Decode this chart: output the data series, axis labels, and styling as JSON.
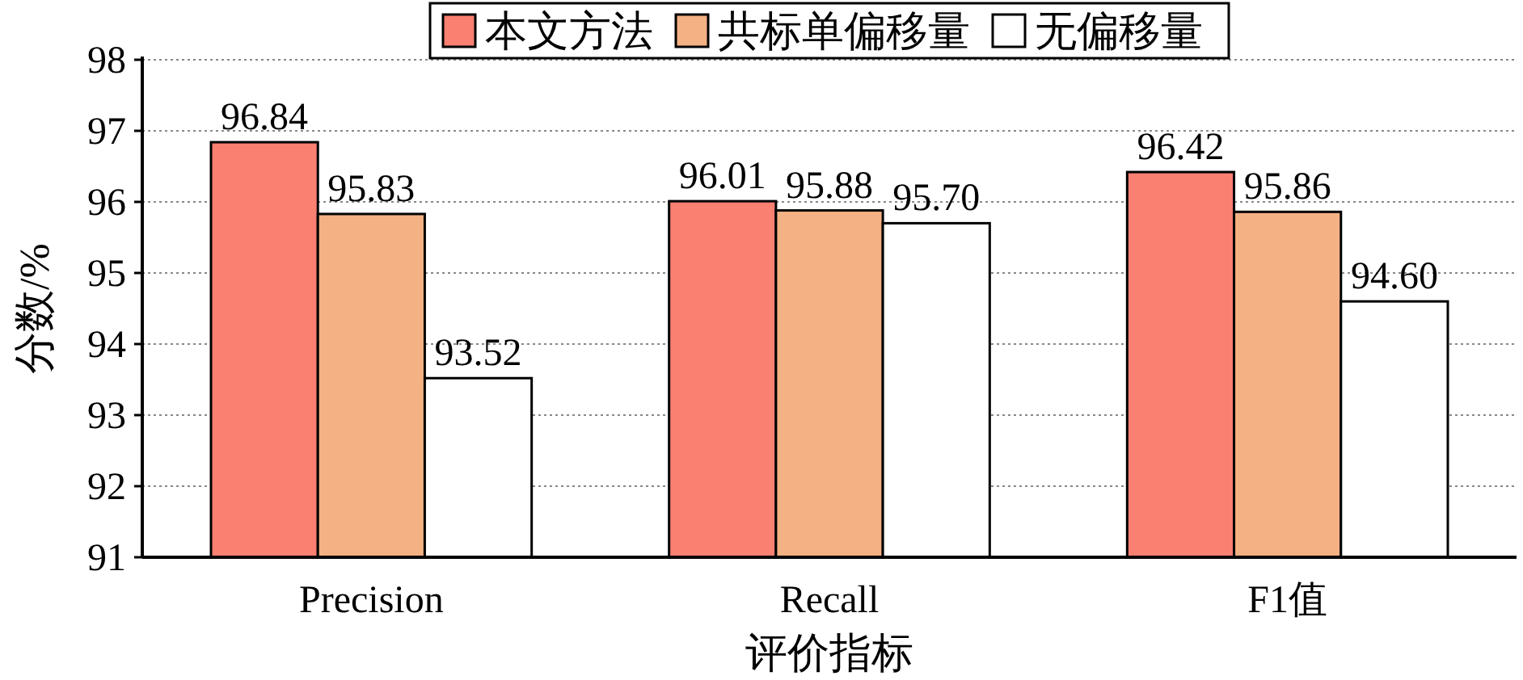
{
  "chart_data": {
    "type": "bar",
    "xlabel": "评价指标",
    "ylabel": "分数/%",
    "categories": [
      "Precision",
      "Recall",
      "F1值"
    ],
    "series": [
      {
        "name": "本文方法",
        "color": "#fa8072",
        "values": [
          96.84,
          96.01,
          96.42
        ],
        "value_labels": [
          "96.84",
          "96.01",
          "96.42"
        ]
      },
      {
        "name": "共标单偏移量",
        "color": "#f4b183",
        "values": [
          95.83,
          95.88,
          95.86
        ],
        "value_labels": [
          "95.83",
          "95.88",
          "95.86"
        ]
      },
      {
        "name": "无偏移量",
        "color": "#ffffff",
        "values": [
          93.52,
          95.7,
          94.6
        ],
        "value_labels": [
          "93.52",
          "95.70",
          "94.60"
        ]
      }
    ],
    "ylim": [
      91,
      98
    ],
    "yticks": [
      91,
      92,
      93,
      94,
      95,
      96,
      97,
      98
    ],
    "grid": "y",
    "legend": "top"
  }
}
